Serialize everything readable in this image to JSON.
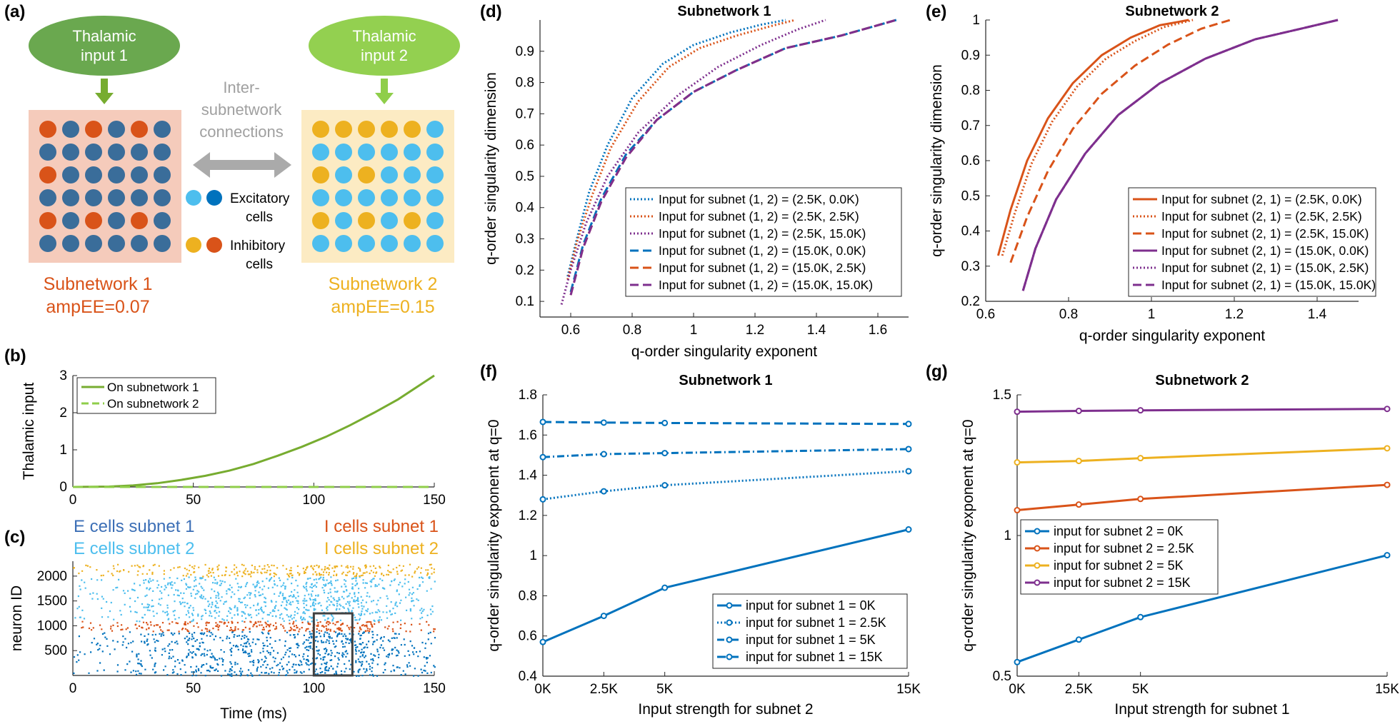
{
  "colors": {
    "blue": "#0072BD",
    "orange": "#D95319",
    "yellow": "#EDB120",
    "purple": "#7E2F8E",
    "green": "#77AC30",
    "lightgreen": "#8fce4a",
    "lightblue": "#4DBEEE",
    "darkblue": "#3A6D9A",
    "panelPink": "#F5CBBB",
    "panelYellow": "#FCEBC3",
    "grayArrow": "#aaaaaa",
    "gray": "#a0a0a0"
  },
  "panel_a": {
    "label": "(a)",
    "input1": [
      "Thalamic",
      "input 1"
    ],
    "input2": [
      "Thalamic",
      "input 2"
    ],
    "inter": [
      "Inter-",
      "subnetwork",
      "connections"
    ],
    "exc": [
      "Excitatory",
      "cells"
    ],
    "inh": [
      "Inhibitory",
      "cells"
    ],
    "sub1": [
      "Subnetwork 1",
      "ampEE=0.07"
    ],
    "sub2": [
      "Subnetwork 2",
      "ampEE=0.15"
    ]
  },
  "panel_c": {
    "label": "(c)",
    "e1": "E cells subnet 1",
    "i1": "I cells subnet 1",
    "e2": "E cells subnet 2",
    "i2": "I cells subnet 2"
  },
  "chart_data": [
    {
      "id": "b",
      "label": "(b)",
      "type": "line",
      "title": "",
      "xlabel": "",
      "ylabel": "Thalamic input",
      "xlim": [
        0,
        150
      ],
      "ylim": [
        0,
        3
      ],
      "xticks": [
        0,
        50,
        100,
        150
      ],
      "yticks": [
        0,
        1,
        2,
        3
      ],
      "legend": "top-left",
      "series": [
        {
          "name": "On subnetwork 1",
          "style": "solid",
          "color": "green",
          "x": [
            0,
            15,
            25,
            35,
            45,
            55,
            65,
            75,
            85,
            95,
            105,
            115,
            125,
            135,
            150
          ],
          "y": [
            0,
            0.01,
            0.04,
            0.1,
            0.19,
            0.3,
            0.44,
            0.62,
            0.84,
            1.08,
            1.35,
            1.66,
            2.0,
            2.36,
            3.0
          ]
        },
        {
          "name": "On subnetwork 2",
          "style": "dashed",
          "color": "lightgreen",
          "x": [
            0,
            150
          ],
          "y": [
            0,
            0
          ]
        }
      ]
    },
    {
      "id": "c",
      "type": "scatter",
      "title": "",
      "xlabel": "Time (ms)",
      "ylabel": "neuron ID",
      "xlim": [
        0,
        150
      ],
      "ylim": [
        0,
        2300
      ],
      "xticks": [
        0,
        50,
        100,
        150
      ],
      "yticks": [
        500,
        1000,
        1500,
        2000
      ],
      "groups": [
        {
          "name": "E cells subnet 1",
          "color": "blue",
          "range": [
            0,
            900
          ]
        },
        {
          "name": "I cells subnet 1",
          "color": "orange",
          "range": [
            900,
            1100
          ]
        },
        {
          "name": "E cells subnet 2",
          "color": "lightblue",
          "range": [
            1100,
            2000
          ]
        },
        {
          "name": "I cells subnet 2",
          "color": "yellow",
          "range": [
            2000,
            2250
          ]
        }
      ],
      "highlight_box": {
        "x": [
          100,
          116
        ],
        "y": [
          0,
          1250
        ]
      }
    },
    {
      "id": "d",
      "label": "(d)",
      "type": "line",
      "title": "Subnetwork 1",
      "xlabel": "q-order singularity exponent",
      "ylabel": "q-order singularity dimension",
      "xlim": [
        0.5,
        1.7
      ],
      "ylim": [
        0.05,
        1.0
      ],
      "xticks": [
        0.6,
        0.8,
        1,
        1.2,
        1.4,
        1.6
      ],
      "yticks": [
        0.1,
        0.2,
        0.3,
        0.4,
        0.5,
        0.6,
        0.7,
        0.8,
        0.9
      ],
      "legend": "bottom-right",
      "series": [
        {
          "name": "Input for subnet (1, 2) = (2.5K, 0.0K)",
          "color": "blue",
          "style": "dotted",
          "x": [
            0.59,
            0.62,
            0.66,
            0.72,
            0.8,
            0.9,
            1.0,
            1.12,
            1.22,
            1.3
          ],
          "y": [
            0.18,
            0.3,
            0.45,
            0.6,
            0.75,
            0.86,
            0.92,
            0.96,
            0.985,
            1.0
          ]
        },
        {
          "name": "Input for subnet (1, 2) = (2.5K, 2.5K)",
          "color": "orange",
          "style": "dotted",
          "x": [
            0.59,
            0.62,
            0.67,
            0.73,
            0.82,
            0.92,
            1.02,
            1.14,
            1.25,
            1.33
          ],
          "y": [
            0.17,
            0.29,
            0.44,
            0.59,
            0.74,
            0.85,
            0.91,
            0.95,
            0.98,
            1.0
          ]
        },
        {
          "name": "Input for subnet (1, 2) = (2.5K, 15.0K)",
          "color": "purple",
          "style": "dotted",
          "x": [
            0.57,
            0.6,
            0.65,
            0.72,
            0.82,
            0.95,
            1.08,
            1.22,
            1.34,
            1.43
          ],
          "y": [
            0.09,
            0.2,
            0.35,
            0.5,
            0.64,
            0.76,
            0.85,
            0.92,
            0.97,
            1.0
          ]
        },
        {
          "name": "Input for subnet (1, 2) = (15.0K, 0.0K)",
          "color": "blue",
          "style": "dashed",
          "x": [
            0.6,
            0.64,
            0.7,
            0.78,
            0.88,
            1.0,
            1.14,
            1.3,
            1.48,
            1.66
          ],
          "y": [
            0.13,
            0.28,
            0.43,
            0.57,
            0.68,
            0.77,
            0.84,
            0.91,
            0.95,
            1.0
          ]
        },
        {
          "name": "Input for subnet (1, 2) = (15.0K, 2.5K)",
          "color": "orange",
          "style": "dashed",
          "x": [
            0.6,
            0.64,
            0.7,
            0.78,
            0.88,
            1.0,
            1.14,
            1.3,
            1.48,
            1.66
          ],
          "y": [
            0.12,
            0.27,
            0.42,
            0.56,
            0.68,
            0.77,
            0.84,
            0.91,
            0.95,
            1.0
          ]
        },
        {
          "name": "Input for subnet (1, 2) = (15.0K, 15.0K)",
          "color": "purple",
          "style": "dashed",
          "x": [
            0.6,
            0.64,
            0.7,
            0.78,
            0.88,
            1.0,
            1.14,
            1.3,
            1.48,
            1.66
          ],
          "y": [
            0.12,
            0.27,
            0.42,
            0.56,
            0.68,
            0.77,
            0.84,
            0.91,
            0.95,
            1.0
          ]
        }
      ]
    },
    {
      "id": "e",
      "label": "(e)",
      "type": "line",
      "title": "Subnetwork 2",
      "xlabel": "q-order singularity exponent",
      "ylabel": "q-order singularity dimension",
      "xlim": [
        0.6,
        1.5
      ],
      "ylim": [
        0.2,
        1.0
      ],
      "xticks": [
        0.6,
        0.8,
        1,
        1.2,
        1.4
      ],
      "yticks": [
        0.2,
        0.3,
        0.4,
        0.5,
        0.6,
        0.7,
        0.8,
        0.9,
        1
      ],
      "legend": "bottom-right",
      "series": [
        {
          "name": "Input for subnet (2, 1) = (2.5K, 0.0K)",
          "color": "orange",
          "style": "solid",
          "x": [
            0.63,
            0.66,
            0.7,
            0.75,
            0.81,
            0.88,
            0.95,
            1.02,
            1.09
          ],
          "y": [
            0.33,
            0.46,
            0.6,
            0.72,
            0.82,
            0.9,
            0.95,
            0.985,
            1.0
          ]
        },
        {
          "name": "Input for subnet (2, 1) = (2.5K, 2.5K)",
          "color": "orange",
          "style": "dotted",
          "x": [
            0.64,
            0.67,
            0.71,
            0.76,
            0.82,
            0.89,
            0.96,
            1.03,
            1.1
          ],
          "y": [
            0.33,
            0.45,
            0.59,
            0.71,
            0.81,
            0.89,
            0.94,
            0.98,
            1.0
          ]
        },
        {
          "name": "Input for subnet (2, 1) = (2.5K, 15.0K)",
          "color": "orange",
          "style": "dashed",
          "x": [
            0.66,
            0.7,
            0.75,
            0.81,
            0.88,
            0.96,
            1.04,
            1.12,
            1.19
          ],
          "y": [
            0.31,
            0.44,
            0.57,
            0.69,
            0.79,
            0.87,
            0.93,
            0.975,
            1.0
          ]
        },
        {
          "name": "Input for subnet (2, 1) = (15.0K, 0.0K)",
          "color": "purple",
          "style": "solid",
          "x": [
            0.69,
            0.72,
            0.77,
            0.84,
            0.92,
            1.02,
            1.13,
            1.25,
            1.36,
            1.45
          ],
          "y": [
            0.23,
            0.35,
            0.49,
            0.62,
            0.73,
            0.82,
            0.89,
            0.945,
            0.975,
            1.0
          ]
        },
        {
          "name": "Input for subnet (2, 1) = (15.0K, 2.5K)",
          "color": "purple",
          "style": "dotted",
          "x": [
            0.69,
            0.72,
            0.77,
            0.84,
            0.92,
            1.02,
            1.13,
            1.25,
            1.36,
            1.45
          ],
          "y": [
            0.23,
            0.35,
            0.49,
            0.62,
            0.73,
            0.82,
            0.89,
            0.945,
            0.975,
            1.0
          ]
        },
        {
          "name": "Input for subnet (2, 1) = (15.0K, 15.0K)",
          "color": "purple",
          "style": "dashed",
          "x": [
            0.69,
            0.72,
            0.77,
            0.84,
            0.92,
            1.02,
            1.13,
            1.25,
            1.36,
            1.45
          ],
          "y": [
            0.23,
            0.35,
            0.49,
            0.62,
            0.73,
            0.82,
            0.89,
            0.945,
            0.975,
            1.0
          ]
        }
      ]
    },
    {
      "id": "f",
      "label": "(f)",
      "type": "line",
      "title": "Subnetwork 1",
      "xlabel": "Input strength for subnet 2",
      "ylabel": "q-order singularity exponent at q=0",
      "xlim": [
        0,
        15
      ],
      "ylim": [
        0.4,
        1.8
      ],
      "xticks": [
        0,
        2.5,
        5,
        15
      ],
      "xticklabels": [
        "0K",
        "2.5K",
        "5K",
        "15K"
      ],
      "yticks": [
        0.4,
        0.6,
        0.8,
        1,
        1.2,
        1.4,
        1.6,
        1.8
      ],
      "legend": "bottom-right",
      "series": [
        {
          "name": "input for subnet 1 = 0K",
          "color": "blue",
          "style": "solid",
          "x": [
            0,
            2.5,
            5,
            15
          ],
          "y": [
            0.57,
            0.7,
            0.84,
            1.13
          ]
        },
        {
          "name": "input for subnet 1 = 2.5K",
          "color": "blue",
          "style": "dotted",
          "x": [
            0,
            2.5,
            5,
            15
          ],
          "y": [
            1.28,
            1.32,
            1.35,
            1.42
          ]
        },
        {
          "name": "input for subnet 1 = 5K",
          "color": "blue",
          "style": "dashdot",
          "x": [
            0,
            2.5,
            5,
            15
          ],
          "y": [
            1.49,
            1.505,
            1.51,
            1.53
          ]
        },
        {
          "name": "input for subnet 1 = 15K",
          "color": "blue",
          "style": "dashed",
          "x": [
            0,
            2.5,
            5,
            15
          ],
          "y": [
            1.665,
            1.662,
            1.66,
            1.655
          ]
        }
      ]
    },
    {
      "id": "g",
      "label": "(g)",
      "type": "line",
      "title": "Subnetwork 2",
      "xlabel": "Input strength for subnet 1",
      "ylabel": "q-order singularity exponent at q=0",
      "xlim": [
        0,
        15
      ],
      "ylim": [
        0.5,
        1.5
      ],
      "xticks": [
        0,
        2.5,
        5,
        15
      ],
      "xticklabels": [
        "0K",
        "2.5K",
        "5K",
        "15K"
      ],
      "yticks": [
        0.5,
        1,
        1.5
      ],
      "legend": "top-left",
      "series": [
        {
          "name": "input for subnet 2 = 0K",
          "color": "blue",
          "style": "solid",
          "x": [
            0,
            2.5,
            5,
            15
          ],
          "y": [
            0.55,
            0.63,
            0.71,
            0.93
          ]
        },
        {
          "name": "input for subnet 2 = 2.5K",
          "color": "orange",
          "style": "solid",
          "x": [
            0,
            2.5,
            5,
            15
          ],
          "y": [
            1.09,
            1.11,
            1.13,
            1.18
          ]
        },
        {
          "name": "input for subnet 2 = 5K",
          "color": "yellow",
          "style": "solid",
          "x": [
            0,
            2.5,
            5,
            15
          ],
          "y": [
            1.26,
            1.265,
            1.275,
            1.31
          ]
        },
        {
          "name": "input for subnet 2 = 15K",
          "color": "purple",
          "style": "solid",
          "x": [
            0,
            2.5,
            5,
            15
          ],
          "y": [
            1.44,
            1.443,
            1.445,
            1.45
          ]
        }
      ]
    }
  ]
}
